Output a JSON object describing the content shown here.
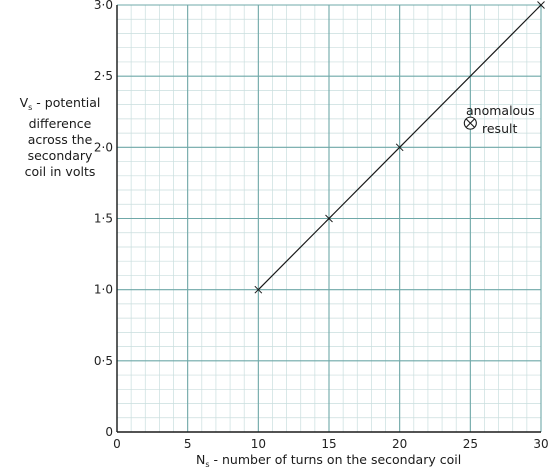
{
  "chart_data": {
    "type": "line",
    "xlabel_symbol": "N",
    "xlabel_sub": "s",
    "xlabel_rest": " - number of turns on the secondary coil",
    "ylabel_symbol": "V",
    "ylabel_sub": "s",
    "ylabel_line1_rest": " - potential",
    "ylabel_line2": "difference",
    "ylabel_line3": "across the",
    "ylabel_line4": "secondary",
    "ylabel_line5": "coil in volts",
    "xlim": [
      0,
      30
    ],
    "ylim": [
      0,
      3.0
    ],
    "x_ticks": [
      "0",
      "5",
      "10",
      "15",
      "20",
      "25",
      "30"
    ],
    "y_ticks": [
      "0",
      "0·5",
      "1·0",
      "1·5",
      "2·0",
      "2·5",
      "3·0"
    ],
    "grid": true,
    "series": [
      {
        "points": [
          {
            "x": 10,
            "y": 1.0
          },
          {
            "x": 15,
            "y": 1.5
          },
          {
            "x": 20,
            "y": 2.0
          },
          {
            "x": 30,
            "y": 3.0
          }
        ],
        "marker": "x"
      }
    ],
    "anomalous_point": {
      "x": 25,
      "y": 2.17
    },
    "annotation_line1": "anomalous",
    "annotation_line2": "result",
    "colors": {
      "major_grid": "#6fa8a8",
      "minor_grid": "#c9dede",
      "line": "#1a1a1a",
      "axis": "#1a1a1a"
    }
  }
}
